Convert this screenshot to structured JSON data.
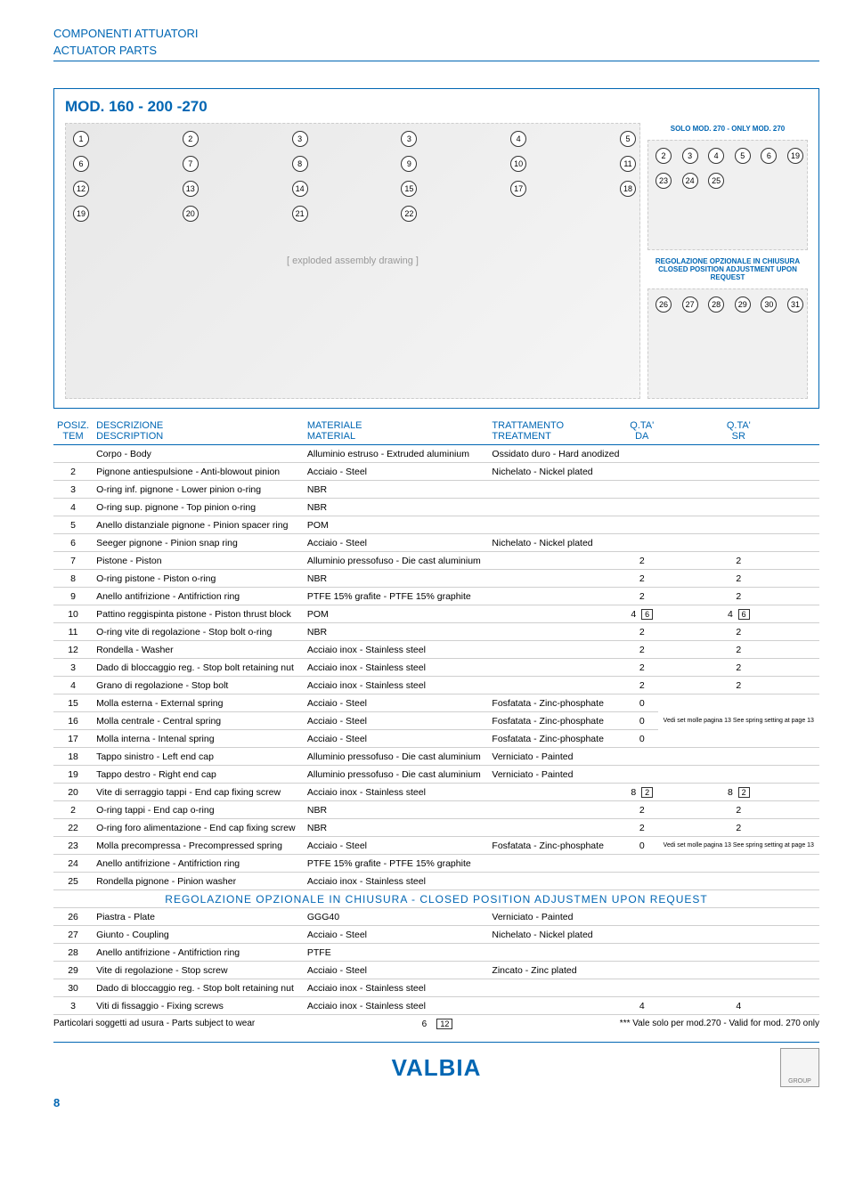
{
  "header": {
    "line1": "COMPONENTI ATTUATORI",
    "line2": "ACTUATOR PARTS"
  },
  "model": {
    "title": "MOD. 160 - 200 -270",
    "solo_note": "SOLO MOD. 270 - ONLY MOD. 270",
    "regolazione_note_line1": "REGOLAZIONE OPZIONALE IN CHIUSURA",
    "regolazione_note_line2": "CLOSED POSITION ADJUSTMENT UPON REQUEST",
    "main_callouts": [
      "1",
      "2",
      "3",
      "3",
      "4",
      "5",
      "6",
      "7",
      "8",
      "9",
      "10",
      "11",
      "12",
      "13",
      "14",
      "15",
      "17",
      "18",
      "19",
      "20",
      "21",
      "22"
    ],
    "side1_callouts": [
      "2",
      "3",
      "4",
      "5",
      "6",
      "19",
      "23",
      "24",
      "25"
    ],
    "side2_callouts": [
      "26",
      "27",
      "28",
      "29",
      "30",
      "31"
    ]
  },
  "table": {
    "headers": {
      "posiz": "POSIZ.",
      "tem": "TEM",
      "descrizione": "DESCRIZIONE",
      "description": "DESCRIPTION",
      "materiale": "MATERIALE",
      "material": "MATERIAL",
      "trattamento": "TRATTAMENTO",
      "treatment": "TREATMENT",
      "qta_da": "Q.TA'",
      "da": "DA",
      "qta_sr": "Q.TA'",
      "sr": "SR"
    },
    "rows": [
      {
        "n": "",
        "desc": "Corpo - Body",
        "mat": "Alluminio estruso - Extruded aluminium",
        "treat": "Ossidato duro - Hard anodized",
        "da": "",
        "sr": ""
      },
      {
        "n": "2",
        "desc": "Pignone antiespulsione - Anti-blowout pinion",
        "mat": "Acciaio - Steel",
        "treat": "Nichelato - Nickel plated",
        "da": "",
        "sr": ""
      },
      {
        "n": "3",
        "desc": "O-ring inf. pignone - Lower pinion o-ring",
        "mat": "NBR",
        "treat": "",
        "da": "",
        "sr": ""
      },
      {
        "n": "4",
        "desc": "O-ring sup. pignone - Top pinion o-ring",
        "mat": "NBR",
        "treat": "",
        "da": "",
        "sr": ""
      },
      {
        "n": "5",
        "desc": "Anello distanziale pignone - Pinion spacer ring",
        "mat": "POM",
        "treat": "",
        "da": "",
        "sr": ""
      },
      {
        "n": "6",
        "desc": "Seeger pignone - Pinion snap ring",
        "mat": "Acciaio - Steel",
        "treat": "Nichelato - Nickel plated",
        "da": "",
        "sr": ""
      },
      {
        "n": "7",
        "desc": "Pistone - Piston",
        "mat": "Alluminio pressofuso - Die cast aluminium",
        "treat": "",
        "da": "2",
        "sr": "2"
      },
      {
        "n": "8",
        "desc": "O-ring pistone - Piston o-ring",
        "mat": "NBR",
        "treat": "",
        "da": "2",
        "sr": "2"
      },
      {
        "n": "9",
        "desc": "Anello antifrizione - Antifriction ring",
        "mat": "PTFE 15% grafite - PTFE 15% graphite",
        "treat": "",
        "da": "2",
        "sr": "2"
      },
      {
        "n": "10",
        "desc": "Pattino reggispinta pistone - Piston thrust block",
        "mat": "POM",
        "treat": "",
        "da": "4",
        "da_ex": "6",
        "sr": "4",
        "sr_ex": "6"
      },
      {
        "n": "11",
        "desc": "O-ring vite di regolazione - Stop bolt o-ring",
        "mat": "NBR",
        "treat": "",
        "da": "2",
        "sr": "2"
      },
      {
        "n": "12",
        "desc": "Rondella - Washer",
        "mat": "Acciaio inox - Stainless steel",
        "treat": "",
        "da": "2",
        "sr": "2"
      },
      {
        "n": "3",
        "desc": "Dado di bloccaggio reg. - Stop bolt retaining nut",
        "mat": "Acciaio inox - Stainless steel",
        "treat": "",
        "da": "2",
        "sr": "2"
      },
      {
        "n": "4",
        "desc": "Grano di regolazione - Stop bolt",
        "mat": "Acciaio inox - Stainless steel",
        "treat": "",
        "da": "2",
        "sr": "2"
      },
      {
        "n": "15",
        "desc": "Molla esterna - External spring",
        "mat": "Acciaio - Steel",
        "treat": "Fosfatata - Zinc-phosphate",
        "da": "0",
        "sr": "",
        "note": "spring"
      },
      {
        "n": "16",
        "desc": "Molla centrale - Central spring",
        "mat": "Acciaio - Steel",
        "treat": "Fosfatata - Zinc-phosphate",
        "da": "0",
        "sr": "",
        "note": "spring"
      },
      {
        "n": "17",
        "desc": "Molla interna - Intenal spring",
        "mat": "Acciaio - Steel",
        "treat": "Fosfatata - Zinc-phosphate",
        "da": "0",
        "sr": "",
        "note": "spring"
      },
      {
        "n": "18",
        "desc": "Tappo sinistro - Left end cap",
        "mat": "Alluminio pressofuso - Die cast aluminium",
        "treat": "Verniciato - Painted",
        "da": "",
        "sr": ""
      },
      {
        "n": "19",
        "desc": "Tappo destro - Right end cap",
        "mat": "Alluminio pressofuso - Die cast aluminium",
        "treat": "Verniciato - Painted",
        "da": "",
        "sr": ""
      },
      {
        "n": "20",
        "desc": "Vite di serraggio tappi - End cap fixing screw",
        "mat": "Acciaio inox - Stainless steel",
        "treat": "",
        "da": "8",
        "da_ex": "2",
        "sr": "8",
        "sr_ex": "2"
      },
      {
        "n": "2",
        "desc": "O-ring tappi - End cap o-ring",
        "mat": "NBR",
        "treat": "",
        "da": "2",
        "sr": "2"
      },
      {
        "n": "22",
        "desc": "O-ring foro alimentazione - End cap fixing screw",
        "mat": "NBR",
        "treat": "",
        "da": "2",
        "sr": "2"
      },
      {
        "n": "23",
        "desc": "Molla precompressa - Precompressed spring",
        "mat": "Acciaio - Steel",
        "treat": "Fosfatata - Zinc-phosphate",
        "da": "0",
        "sr": "",
        "note": "spring2"
      },
      {
        "n": "24",
        "desc": "Anello antifrizione - Antifriction ring",
        "mat": "PTFE 15% grafite - PTFE 15% graphite",
        "treat": "",
        "da": "",
        "sr": ""
      },
      {
        "n": "25",
        "desc": "Rondella pignone - Pinion washer",
        "mat": "Acciaio inox - Stainless steel",
        "treat": "",
        "da": "",
        "sr": ""
      }
    ],
    "section_title": "REGOLAZIONE OPZIONALE   IN CHIUSURA - CLOSED POSITION ADJUSTMEN     UPON REQUEST",
    "rows2": [
      {
        "n": "26",
        "desc": "Piastra - Plate",
        "mat": "GGG40",
        "treat": "Verniciato - Painted",
        "da": "",
        "sr": ""
      },
      {
        "n": "27",
        "desc": "Giunto - Coupling",
        "mat": "Acciaio - Steel",
        "treat": "Nichelato - Nickel plated",
        "da": "",
        "sr": ""
      },
      {
        "n": "28",
        "desc": "Anello antifrizione - Antifriction ring",
        "mat": "PTFE",
        "treat": "",
        "da": "",
        "sr": ""
      },
      {
        "n": "29",
        "desc": "Vite di regolazione - Stop screw",
        "mat": "Acciaio - Steel",
        "treat": "Zincato - Zinc plated",
        "da": "",
        "sr": ""
      },
      {
        "n": "30",
        "desc": "Dado di bloccaggio reg. - Stop bolt retaining nut",
        "mat": "Acciaio inox - Stainless steel",
        "treat": "",
        "da": "",
        "sr": ""
      },
      {
        "n": "3",
        "desc": "Viti di fissaggio - Fixing screws",
        "mat": "Acciaio inox - Stainless steel",
        "treat": "",
        "da": "4",
        "sr": "4"
      }
    ],
    "spring_note": "Vedi set molle pagina 13\nSee spring setting at page 13",
    "spring_note2": "Vedi set molle pagina 13\nSee spring  setting at page 13"
  },
  "footer": {
    "wear_note": "Particolari soggetti ad usura - Parts subject to wear",
    "valid_note": "*** Vale solo per mod.270 - Valid for mod. 270 only",
    "page_number": "8",
    "six": "6",
    "twelve": "12",
    "logo": "VALBIA",
    "group": "GROUP"
  },
  "colors": {
    "brand": "#0066b3",
    "rule": "#cfcfcf",
    "text": "#000000"
  }
}
